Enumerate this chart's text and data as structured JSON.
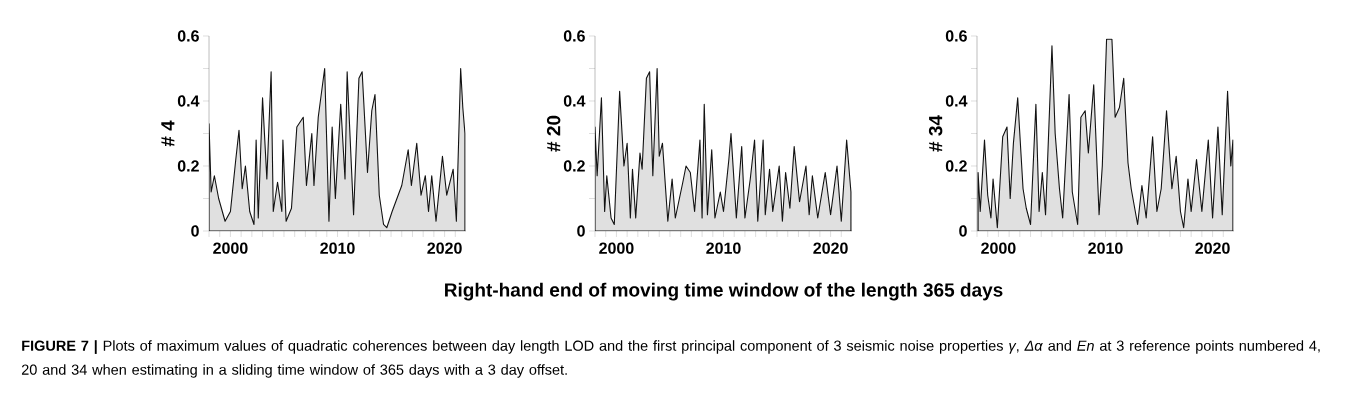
{
  "chart_data": [
    {
      "type": "area",
      "ylabel": "# 4",
      "xlim": [
        1998,
        2022
      ],
      "ylim": [
        0,
        0.6
      ],
      "xticks": [
        {
          "value": 1998,
          "label": null
        },
        {
          "value": 1999,
          "label": null
        },
        2000,
        {
          "value": 2001,
          "label": null
        },
        {
          "value": 2002,
          "label": null
        },
        {
          "value": 2003,
          "label": null
        },
        {
          "value": 2004,
          "label": null
        },
        {
          "value": 2005,
          "label": null
        },
        {
          "value": 2006,
          "label": null
        },
        {
          "value": 2007,
          "label": null
        },
        {
          "value": 2008,
          "label": null
        },
        {
          "value": 2009,
          "label": null
        },
        2010,
        {
          "value": 2011,
          "label": null
        },
        {
          "value": 2012,
          "label": null
        },
        {
          "value": 2013,
          "label": null
        },
        {
          "value": 2014,
          "label": null
        },
        {
          "value": 2015,
          "label": null
        },
        {
          "value": 2016,
          "label": null
        },
        {
          "value": 2017,
          "label": null
        },
        {
          "value": 2018,
          "label": null
        },
        {
          "value": 2019,
          "label": null
        },
        2020,
        {
          "value": 2021,
          "label": null
        }
      ],
      "yticks": [
        0,
        {
          "value": 0.1,
          "label": null
        },
        0.2,
        {
          "value": 0.3,
          "label": null
        },
        0.4,
        {
          "value": 0.5,
          "label": null
        },
        0.6
      ],
      "annotations": [
        "**FIGURE 7 |** Plots of maximum values of quadratic coherences between day length LOD and the first principal component of 3 seismic noise properties *γ*, *Δα* and *En* at 3 reference points numbered 4, 20 and 34 when estimating in a sliding time window of 365 days with a 3 day offset."
      ],
      "series": [
        {
          "color": "#e0e0e0",
          "x": [
            1998.0,
            1998.2,
            1998.5,
            1998.9,
            1999.5,
            2000.0,
            2000.5,
            2000.8,
            2001.1,
            2001.4,
            2001.8,
            2002.2,
            2002.4,
            2002.6,
            2003.0,
            2003.4,
            2003.8,
            2004.0,
            2004.4,
            2004.8,
            2004.9,
            2005.2,
            2005.7,
            2006.0,
            2006.2,
            2006.8,
            2007.1,
            2007.6,
            2007.8,
            2008.2,
            2008.8,
            2009.2,
            2009.5,
            2009.8,
            2010.3,
            2010.7,
            2010.9,
            2011.5,
            2012.0,
            2012.3,
            2012.8,
            2013.2,
            2013.5,
            2013.9,
            2014.3,
            2014.6,
            2015.1,
            2016.0,
            2016.6,
            2016.9,
            2017.4,
            2017.8,
            2018.2,
            2018.5,
            2018.8,
            2019.2,
            2019.8,
            2020.2,
            2020.8,
            2021.1,
            2021.5,
            2021.7,
            2021.9
          ],
          "values": [
            0.33,
            0.12,
            0.17,
            0.1,
            0.03,
            0.06,
            0.22,
            0.31,
            0.13,
            0.2,
            0.06,
            0.02,
            0.28,
            0.04,
            0.41,
            0.16,
            0.49,
            0.06,
            0.15,
            0.06,
            0.28,
            0.03,
            0.07,
            0.22,
            0.32,
            0.35,
            0.14,
            0.3,
            0.14,
            0.35,
            0.5,
            0.03,
            0.32,
            0.1,
            0.39,
            0.16,
            0.49,
            0.05,
            0.47,
            0.49,
            0.18,
            0.37,
            0.42,
            0.11,
            0.02,
            0.01,
            0.06,
            0.14,
            0.25,
            0.14,
            0.27,
            0.11,
            0.17,
            0.06,
            0.17,
            0.03,
            0.23,
            0.11,
            0.19,
            0.03,
            0.5,
            0.38,
            0.3
          ]
        }
      ]
    },
    {
      "type": "area",
      "ylabel": "# 20",
      "xlabel": "Right-hand end of moving time window of the length 365 days",
      "xlim": [
        1998,
        2022
      ],
      "ylim": [
        0,
        0.6
      ],
      "xticks": [
        {
          "value": 1998,
          "label": null
        },
        {
          "value": 1999,
          "label": null
        },
        2000,
        {
          "value": 2001,
          "label": null
        },
        {
          "value": 2002,
          "label": null
        },
        {
          "value": 2003,
          "label": null
        },
        {
          "value": 2004,
          "label": null
        },
        {
          "value": 2005,
          "label": null
        },
        {
          "value": 2006,
          "label": null
        },
        {
          "value": 2007,
          "label": null
        },
        {
          "value": 2008,
          "label": null
        },
        {
          "value": 2009,
          "label": null
        },
        2010,
        {
          "value": 2011,
          "label": null
        },
        {
          "value": 2012,
          "label": null
        },
        {
          "value": 2013,
          "label": null
        },
        {
          "value": 2014,
          "label": null
        },
        {
          "value": 2015,
          "label": null
        },
        {
          "value": 2016,
          "label": null
        },
        {
          "value": 2017,
          "label": null
        },
        {
          "value": 2018,
          "label": null
        },
        {
          "value": 2019,
          "label": null
        },
        2020,
        {
          "value": 2021,
          "label": null
        }
      ],
      "yticks": [
        0,
        {
          "value": 0.1,
          "label": null
        },
        0.2,
        {
          "value": 0.3,
          "label": null
        },
        0.4,
        {
          "value": 0.5,
          "label": null
        },
        0.6
      ],
      "series": [
        {
          "color": "#e0e0e0",
          "x": [
            1998.0,
            1998.2,
            1998.6,
            1998.9,
            1999.1,
            1999.5,
            1999.8,
            2000.3,
            2000.7,
            2001.0,
            2001.3,
            2001.5,
            2001.8,
            2002.2,
            2002.4,
            2002.8,
            2003.1,
            2003.4,
            2003.8,
            2004.0,
            2004.3,
            2004.8,
            2005.2,
            2005.5,
            2006.2,
            2006.5,
            2006.9,
            2007.3,
            2007.8,
            2008.0,
            2008.2,
            2008.5,
            2008.9,
            2009.2,
            2009.7,
            2010.0,
            2010.5,
            2010.7,
            2011.2,
            2011.7,
            2012.0,
            2012.5,
            2012.9,
            2013.2,
            2013.7,
            2013.9,
            2014.3,
            2014.6,
            2015.2,
            2015.5,
            2015.8,
            2016.2,
            2016.6,
            2017.1,
            2017.7,
            2018.0,
            2018.3,
            2018.8,
            2019.5,
            2020.0,
            2020.6,
            2021.0,
            2021.5,
            2021.9
          ],
          "values": [
            0.32,
            0.17,
            0.41,
            0.06,
            0.17,
            0.04,
            0.02,
            0.43,
            0.2,
            0.27,
            0.04,
            0.19,
            0.04,
            0.24,
            0.19,
            0.47,
            0.49,
            0.17,
            0.5,
            0.23,
            0.27,
            0.03,
            0.16,
            0.04,
            0.15,
            0.2,
            0.18,
            0.06,
            0.28,
            0.04,
            0.39,
            0.05,
            0.25,
            0.04,
            0.12,
            0.06,
            0.22,
            0.3,
            0.04,
            0.26,
            0.04,
            0.16,
            0.28,
            0.03,
            0.28,
            0.05,
            0.19,
            0.06,
            0.2,
            0.03,
            0.18,
            0.07,
            0.26,
            0.09,
            0.2,
            0.05,
            0.17,
            0.04,
            0.18,
            0.05,
            0.2,
            0.03,
            0.28,
            0.12
          ]
        }
      ]
    },
    {
      "type": "area",
      "ylabel": "# 34",
      "xlim": [
        1998,
        2022
      ],
      "ylim": [
        0,
        0.6
      ],
      "xticks": [
        {
          "value": 1998,
          "label": null
        },
        {
          "value": 1999,
          "label": null
        },
        2000,
        {
          "value": 2001,
          "label": null
        },
        {
          "value": 2002,
          "label": null
        },
        {
          "value": 2003,
          "label": null
        },
        {
          "value": 2004,
          "label": null
        },
        {
          "value": 2005,
          "label": null
        },
        {
          "value": 2006,
          "label": null
        },
        {
          "value": 2007,
          "label": null
        },
        {
          "value": 2008,
          "label": null
        },
        {
          "value": 2009,
          "label": null
        },
        2010,
        {
          "value": 2011,
          "label": null
        },
        {
          "value": 2012,
          "label": null
        },
        {
          "value": 2013,
          "label": null
        },
        {
          "value": 2014,
          "label": null
        },
        {
          "value": 2015,
          "label": null
        },
        {
          "value": 2016,
          "label": null
        },
        {
          "value": 2017,
          "label": null
        },
        {
          "value": 2018,
          "label": null
        },
        {
          "value": 2019,
          "label": null
        },
        2020,
        {
          "value": 2021,
          "label": null
        }
      ],
      "yticks": [
        0,
        {
          "value": 0.1,
          "label": null
        },
        0.2,
        {
          "value": 0.3,
          "label": null
        },
        0.4,
        {
          "value": 0.5,
          "label": null
        },
        0.6
      ],
      "series": [
        {
          "color": "#e0e0e0",
          "x": [
            1998.1,
            1998.3,
            1998.7,
            1999.0,
            1999.3,
            1999.5,
            1999.9,
            2000.4,
            2000.8,
            2001.1,
            2001.4,
            2001.8,
            2002.3,
            2002.6,
            2003.0,
            2003.5,
            2003.8,
            2004.1,
            2004.4,
            2005.0,
            2005.3,
            2005.7,
            2006.0,
            2006.6,
            2006.9,
            2007.4,
            2007.7,
            2008.1,
            2008.4,
            2008.9,
            2009.4,
            2009.7,
            2010.1,
            2010.6,
            2010.9,
            2011.3,
            2011.7,
            2012.1,
            2012.4,
            2013.0,
            2013.4,
            2013.8,
            2014.4,
            2014.8,
            2015.2,
            2015.7,
            2016.2,
            2016.6,
            2017.0,
            2017.3,
            2017.7,
            2018.0,
            2018.5,
            2019.0,
            2019.6,
            2020.0,
            2020.5,
            2020.9,
            2021.4,
            2021.7,
            2021.9
          ],
          "values": [
            0.18,
            0.06,
            0.28,
            0.11,
            0.04,
            0.16,
            0.01,
            0.29,
            0.32,
            0.1,
            0.27,
            0.41,
            0.13,
            0.07,
            0.02,
            0.39,
            0.06,
            0.18,
            0.05,
            0.57,
            0.3,
            0.13,
            0.04,
            0.42,
            0.12,
            0.02,
            0.35,
            0.37,
            0.24,
            0.45,
            0.05,
            0.2,
            0.59,
            0.59,
            0.35,
            0.38,
            0.47,
            0.21,
            0.13,
            0.02,
            0.14,
            0.04,
            0.29,
            0.06,
            0.13,
            0.37,
            0.13,
            0.23,
            0.06,
            0.01,
            0.16,
            0.06,
            0.22,
            0.06,
            0.28,
            0.04,
            0.32,
            0.05,
            0.43,
            0.2,
            0.28
          ]
        }
      ]
    }
  ]
}
